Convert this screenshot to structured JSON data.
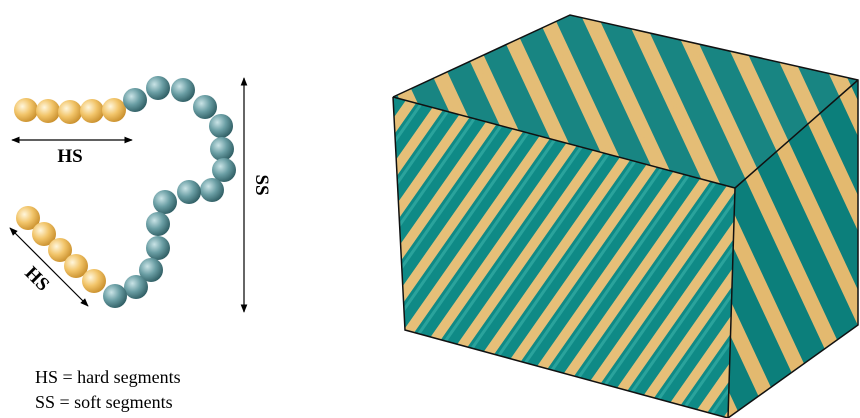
{
  "labels": {
    "hs_top": "HS",
    "hs_diagonal": "HS",
    "ss": "SS"
  },
  "legend": {
    "hs": "HS = hard segments",
    "ss": "SS = soft segments"
  }
}
